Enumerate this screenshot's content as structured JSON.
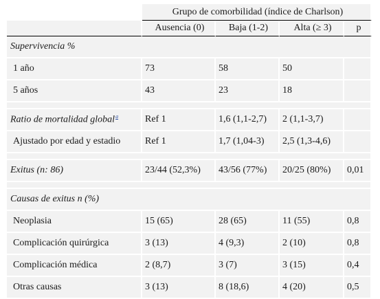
{
  "header": {
    "group_title": "Grupo de comorbilidad (índice de Charlson)",
    "columns": [
      "Ausencia (0)",
      "Baja (1-2)",
      "Alta (≥ 3)",
      "p"
    ]
  },
  "sections": {
    "supervivencia": {
      "title": "Supervivencia %",
      "rows": [
        {
          "label": "1 año",
          "values": [
            "73",
            "58",
            "50",
            ""
          ]
        },
        {
          "label": "5 años",
          "values": [
            "43",
            "23",
            "18",
            ""
          ]
        }
      ]
    },
    "ratio": {
      "title": "Ratio de mortalidad global",
      "footnote": "a",
      "values": [
        "Ref 1",
        "1,6 (1,1-2,7)",
        "2 (1,1-3,7)",
        ""
      ],
      "rows": [
        {
          "label": "Ajustado por edad y estadio",
          "values": [
            "Ref 1",
            "1,7 (1,04-3)",
            "2,5 (1,3-4,6)",
            ""
          ]
        }
      ]
    },
    "exitus": {
      "title": "Exitus (n: 86)",
      "values": [
        "23/44 (52,3%)",
        "43/56 (77%)",
        "20/25 (80%)",
        "0,01"
      ]
    },
    "causas": {
      "title": "Causas de exitus n (%)",
      "rows": [
        {
          "label": "Neoplasia",
          "values": [
            "15 (65)",
            "28 (65)",
            "11 (55)",
            "0,8"
          ]
        },
        {
          "label": "Complicación quirúrgica",
          "values": [
            "3 (13)",
            "4 (9,3)",
            "2 (10)",
            "0,8"
          ]
        },
        {
          "label": "Complicación médica",
          "values": [
            "2 (8,7)",
            "3 (7)",
            "3 (15)",
            "0,4"
          ]
        },
        {
          "label": "Otras causas",
          "values": [
            "3 (13)",
            "8 (18,6)",
            "4 (20)",
            "0,5"
          ]
        }
      ]
    }
  }
}
